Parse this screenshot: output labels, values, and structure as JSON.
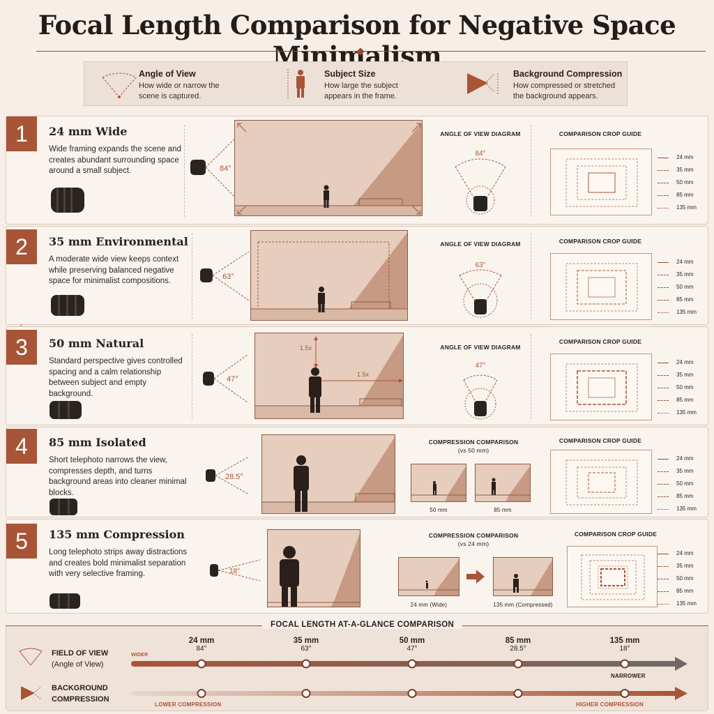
{
  "title": "Focal Length Comparison for Negative Space Minimalism",
  "legend": [
    {
      "icon": "angle-of-view-icon",
      "title": "Angle of View",
      "desc": "How wide or narrow the scene is captured."
    },
    {
      "icon": "subject-size-icon",
      "title": "Subject Size",
      "desc": "How large the subject appears in the frame."
    },
    {
      "icon": "background-compression-icon",
      "title": "Background Compression",
      "desc": "How compressed or stretched the background appears."
    }
  ],
  "rows": [
    {
      "num": "1",
      "title": "24 mm Wide",
      "desc": "Wide framing expands the scene and creates abundant surrounding space around a small subject.",
      "angle": "84°",
      "angle_deg": 84,
      "panel_label": "ANGLE OF VIEW DIAGRAM",
      "crop_label": "COMPARISON CROP GUIDE",
      "subject_scale": 0.18
    },
    {
      "num": "2",
      "title": "35 mm Environmental",
      "desc": "A moderate wide view keeps context while preserving balanced negative space for minimalist compositions.",
      "angle": "63°",
      "angle_deg": 63,
      "panel_label": "ANGLE OF VIEW DIAGRAM",
      "crop_label": "COMPARISON CROP GUIDE",
      "subject_scale": 0.26
    },
    {
      "num": "3",
      "title": "50 mm Natural",
      "desc": "Standard perspective gives controlled spacing and a calm relationship between subject and empty background.",
      "angle": "47°",
      "angle_deg": 47,
      "panel_label": "ANGLE OF VIEW DIAGRAM",
      "crop_label": "COMPARISON CROP GUIDE",
      "subject_scale": 0.42,
      "spacing_label": "1.5x"
    },
    {
      "num": "4",
      "title": "85 mm Isolated",
      "desc": "Short telephoto narrows the view, compresses depth, and turns background areas into cleaner minimal blocks.",
      "angle": "28.5°",
      "angle_deg": 28.5,
      "panel_label": "COMPRESSION COMPARISON",
      "panel_sub": "(vs 50 mm)",
      "compare_left": "50 mm",
      "compare_right": "85 mm",
      "crop_label": "COMPARISON CROP GUIDE",
      "subject_scale": 0.6
    },
    {
      "num": "5",
      "title": "135 mm Compression",
      "desc": "Long telephoto strips away distractions and creates bold minimalist separation with very selective framing.",
      "angle": "18°",
      "angle_deg": 18,
      "panel_label": "COMPRESSION COMPARISON",
      "panel_sub": "(vs 24 mm)",
      "compare_left": "24 mm (Wide)",
      "compare_right": "135 mm (Compressed)",
      "crop_label": "COMPARISON CROP GUIDE",
      "subject_scale": 0.72
    }
  ],
  "crop_legend": [
    "24 mm",
    "35 mm",
    "50 mm",
    "85 mm",
    "135 mm"
  ],
  "timeline": {
    "title": "FOCAL LENGTH AT-A-GLANCE COMPARISON",
    "fov_label": "FIELD OF VIEW",
    "fov_sub": "(Angle of View)",
    "wider": "WIDER",
    "narrower": "NARROWER",
    "bg_label_1": "BACKGROUND",
    "bg_label_2": "COMPRESSION",
    "lower": "LOWER COMPRESSION",
    "higher": "HIGHER COMPRESSION",
    "ticks": [
      {
        "mm": "24 mm",
        "deg": "84°"
      },
      {
        "mm": "35 mm",
        "deg": "63°"
      },
      {
        "mm": "50 mm",
        "deg": "47°"
      },
      {
        "mm": "85 mm",
        "deg": "28.5°"
      },
      {
        "mm": "135 mm",
        "deg": "18°"
      }
    ]
  },
  "colors": {
    "accent": "#a85436",
    "wall": "#e6cdbd",
    "shadow": "#c79a83",
    "dark": "#2a1f1a"
  }
}
